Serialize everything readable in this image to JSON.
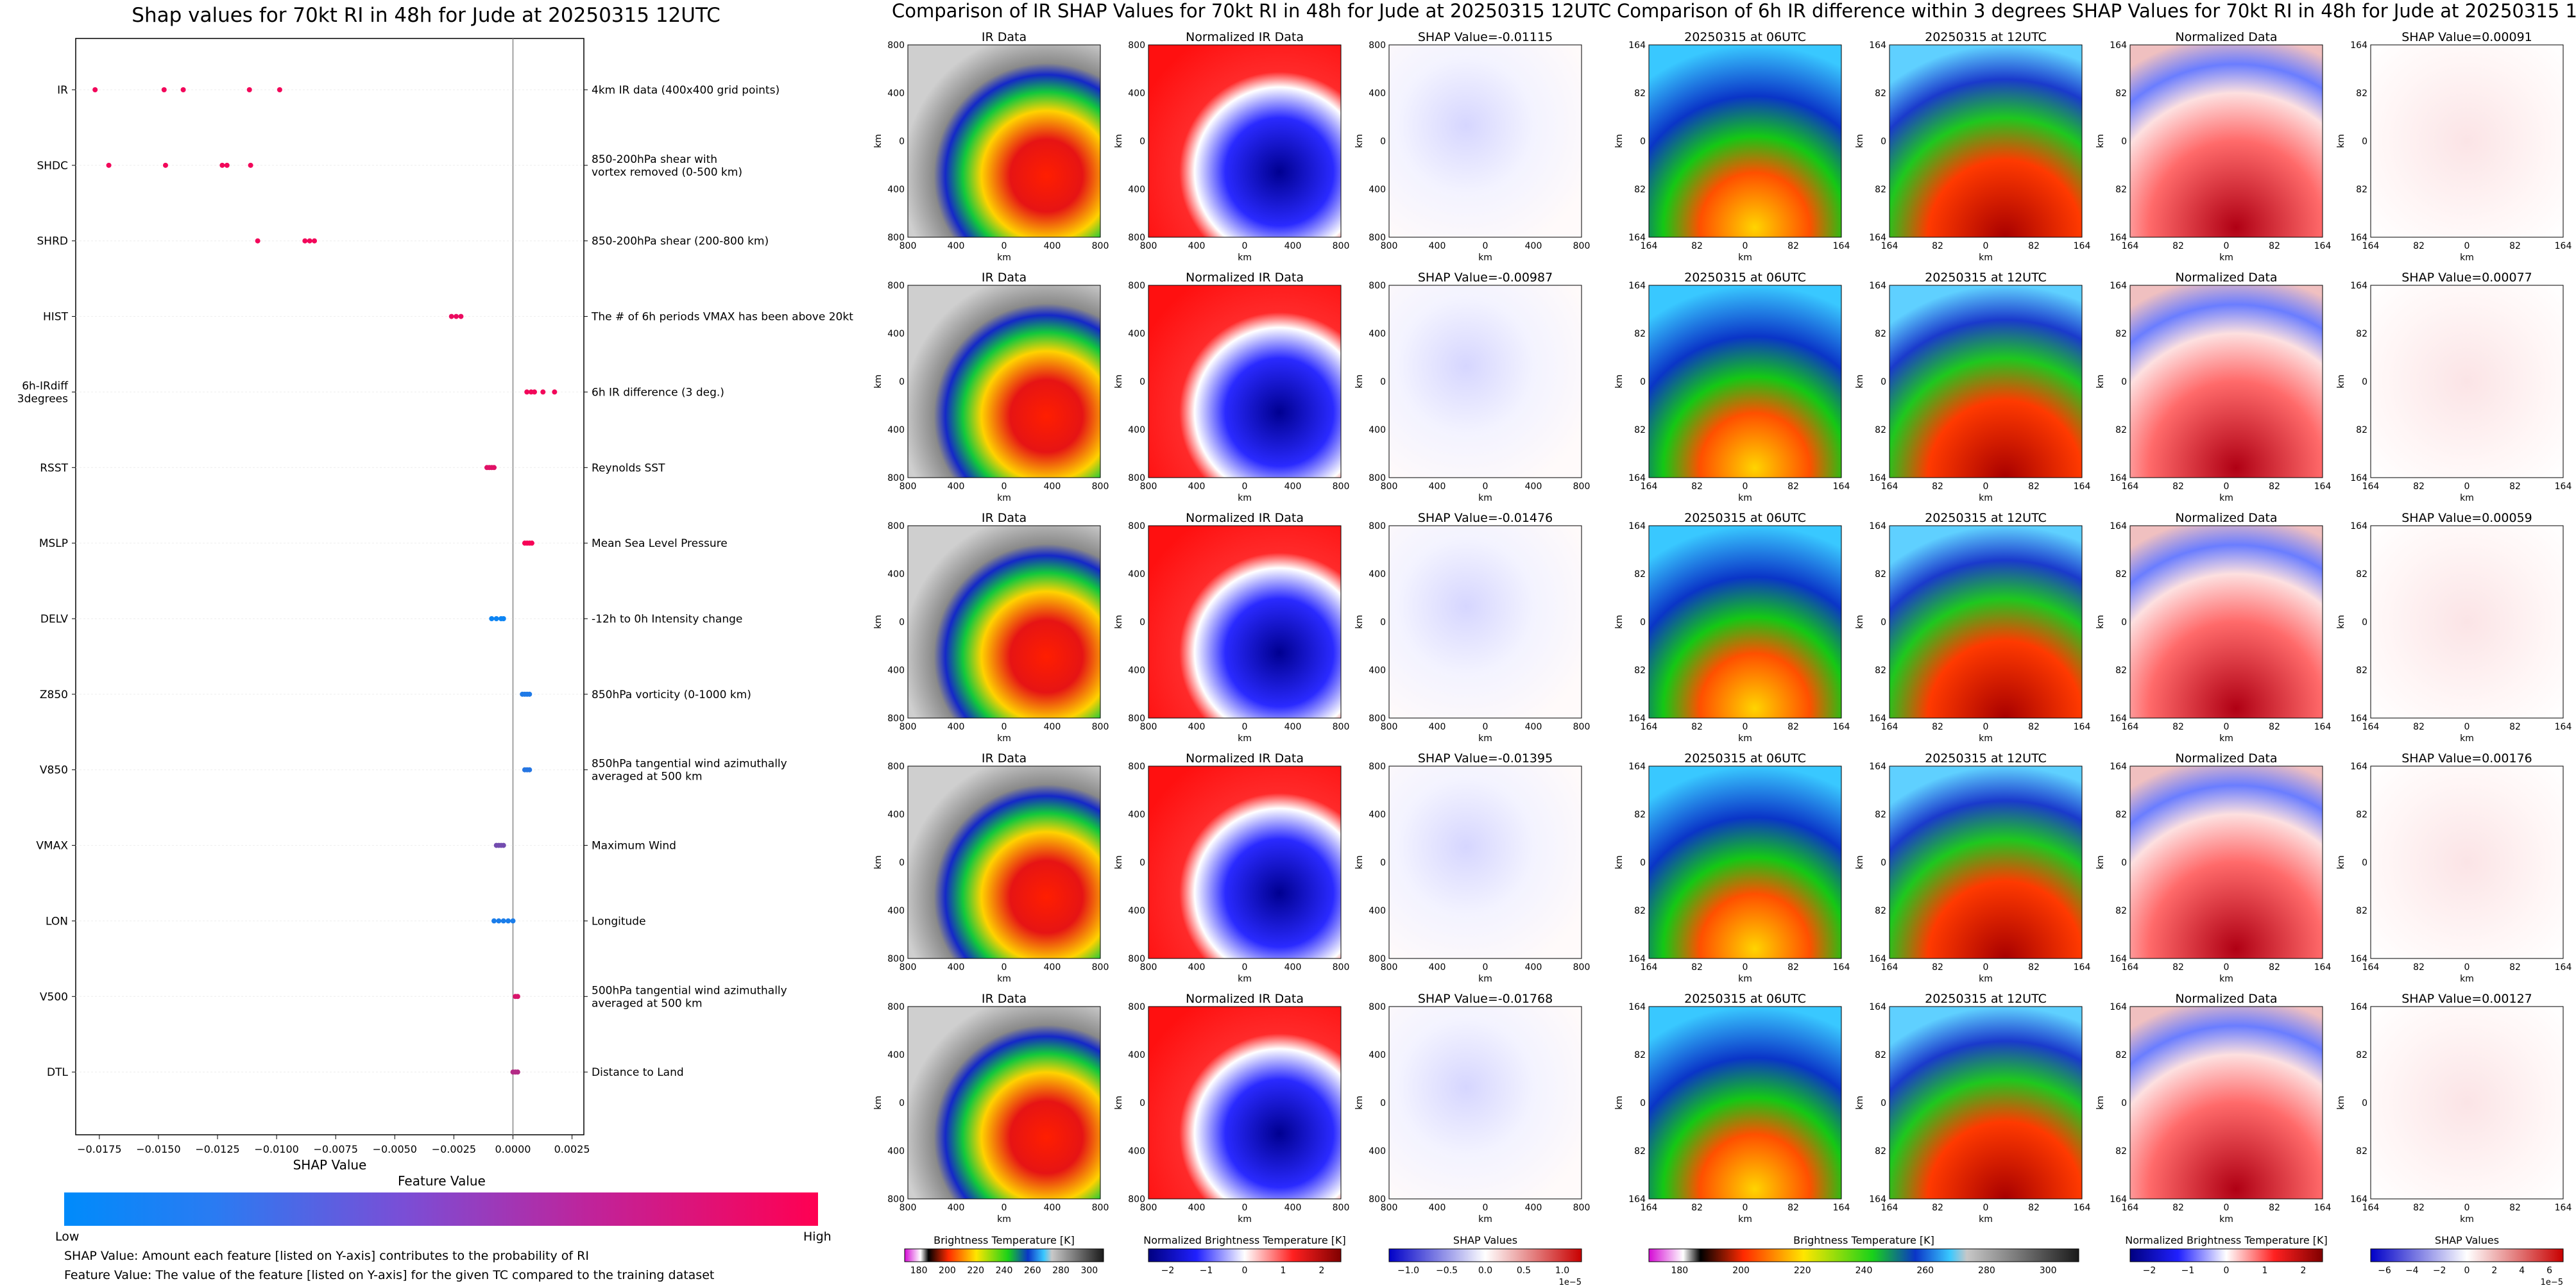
{
  "figure": {
    "left_title": "Shap values for 70kt RI in 48h for Jude at 20250315 12UTC",
    "mid_title": "Comparison of IR SHAP Values for 70kt RI in 48h for Jude at 20250315 12UTC",
    "right_title": "Comparison of 6h IR difference within 3 degrees SHAP Values for 70kt RI in 48h for Jude at 20250315 12UTC",
    "feature_value_label": "Feature Value",
    "low_label": "Low",
    "high_label": "High",
    "note1": "SHAP Value: Amount each feature [listed on Y-axis] contributes to the probability of RI",
    "note2": "Feature Value: The value of the feature [listed on Y-axis] for the given TC compared to the training dataset",
    "ir_col_titles": [
      "IR Data",
      "Normalized IR Data"
    ],
    "ir_shap_titles": [
      "SHAP Value=-0.01115",
      "SHAP Value=-0.00987",
      "SHAP Value=-0.01476",
      "SHAP Value=-0.01395",
      "SHAP Value=-0.01768"
    ],
    "diff_col_titles": [
      "20250315 at 06UTC",
      "20250315 at 12UTC",
      "Normalized Data"
    ],
    "diff_shap_titles": [
      "SHAP Value=0.00091",
      "SHAP Value=0.00077",
      "SHAP Value=0.00059",
      "SHAP Value=0.00176",
      "SHAP Value=0.00127"
    ],
    "ir_ticks": [
      "800",
      "400",
      "0",
      "400",
      "800"
    ],
    "diff_ticks": [
      "164",
      "82",
      "0",
      "82",
      "164"
    ],
    "km": "km",
    "colorbars": [
      {
        "label": "Brightness Temperature [K]",
        "ticks": [
          "180",
          "200",
          "220",
          "240",
          "260",
          "280",
          "300"
        ],
        "offset": ""
      },
      {
        "label": "Normalized Brightness Temperature [K]",
        "ticks": [
          "−2",
          "−1",
          "0",
          "1",
          "2"
        ],
        "offset": ""
      },
      {
        "label": "SHAP Values",
        "ticks": [
          "−1.0",
          "−0.5",
          "0.0",
          "0.5",
          "1.0"
        ],
        "offset": "1e−5"
      },
      {
        "label": "Brightness Temperature [K]",
        "ticks": [
          "180",
          "200",
          "220",
          "240",
          "260",
          "280",
          "300"
        ],
        "offset": ""
      },
      {
        "label": "Normalized Brightness Temperature [K]",
        "ticks": [
          "−2",
          "−1",
          "0",
          "1",
          "2"
        ],
        "offset": ""
      },
      {
        "label": "SHAP Values",
        "ticks": [
          "−6",
          "−4",
          "−2",
          "0",
          "2",
          "4",
          "6"
        ],
        "offset": "1e−5"
      }
    ]
  },
  "colors": {
    "low": "#008bfb",
    "high": "#ff0052",
    "pos": "#d7191c",
    "neg": "#2b3fd1"
  },
  "chart_data": {
    "type": "scatter",
    "title": "Shap values for 70kt RI in 48h for Jude at 20250315 12UTC",
    "xlabel": "SHAP Value",
    "xlim": [
      -0.0185,
      0.003
    ],
    "xticks": [
      -0.0175,
      -0.015,
      -0.0125,
      -0.01,
      -0.0075,
      -0.005,
      -0.0025,
      0.0,
      0.0025
    ],
    "xtick_labels": [
      "−0.0175",
      "−0.0150",
      "−0.0125",
      "−0.0100",
      "−0.0075",
      "−0.0050",
      "−0.0025",
      "0.0000",
      "0.0025"
    ],
    "features": [
      {
        "name": "IR",
        "desc": [
          "4km IR data (400x400 grid points)"
        ],
        "values": [
          -0.01768,
          -0.01476,
          -0.01395,
          -0.01115,
          -0.00987
        ],
        "feature_level": 0.95
      },
      {
        "name": "SHDC",
        "desc": [
          "850-200hPa shear with",
          "vortex removed (0-500 km)"
        ],
        "values": [
          -0.0171,
          -0.0147,
          -0.0123,
          -0.0121,
          -0.0111
        ],
        "feature_level": 0.95
      },
      {
        "name": "SHRD",
        "desc": [
          "850-200hPa shear (200-800 km)"
        ],
        "values": [
          -0.0108,
          -0.0088,
          -0.0086,
          -0.0084
        ],
        "feature_level": 0.95
      },
      {
        "name": "HIST",
        "desc": [
          "The # of 6h periods VMAX has been above 20kt"
        ],
        "values": [
          -0.0026,
          -0.0024,
          -0.0022
        ],
        "feature_level": 0.92
      },
      {
        "name": "6h-IRdiff\n3degrees",
        "desc": [
          "6h IR difference (3 deg.)"
        ],
        "values": [
          0.00059,
          0.00077,
          0.00091,
          0.00127,
          0.00176
        ],
        "feature_level": 0.95
      },
      {
        "name": "RSST",
        "desc": [
          "Reynolds SST"
        ],
        "values": [
          -0.0011,
          -0.001,
          -0.0009,
          -0.0008
        ],
        "feature_level": 0.88
      },
      {
        "name": "MSLP",
        "desc": [
          "Mean Sea Level Pressure"
        ],
        "values": [
          0.0005,
          0.0006,
          0.0007,
          0.0008
        ],
        "feature_level": 0.97
      },
      {
        "name": "DELV",
        "desc": [
          "-12h to 0h Intensity change"
        ],
        "values": [
          -0.0009,
          -0.0007,
          -0.0005,
          -0.0004
        ],
        "feature_level": 0.05
      },
      {
        "name": "Z850",
        "desc": [
          "850hPa vorticity (0-1000 km)"
        ],
        "values": [
          0.0004,
          0.0005,
          0.0006,
          0.0007
        ],
        "feature_level": 0.12
      },
      {
        "name": "V850",
        "desc": [
          "850hPa tangential wind azimuthally",
          "averaged at 500 km"
        ],
        "values": [
          0.0005,
          0.0006,
          0.0007
        ],
        "feature_level": 0.15
      },
      {
        "name": "VMAX",
        "desc": [
          "Maximum Wind"
        ],
        "values": [
          -0.0007,
          -0.0006,
          -0.0005,
          -0.0004
        ],
        "feature_level": 0.45
      },
      {
        "name": "LON",
        "desc": [
          "Longitude"
        ],
        "values": [
          -0.0008,
          -0.0006,
          -0.0004,
          -0.0002,
          0.0
        ],
        "feature_level": 0.1
      },
      {
        "name": "V500",
        "desc": [
          "500hPa tangential wind azimuthally",
          "averaged at 500 km"
        ],
        "values": [
          0.0001,
          0.0002
        ],
        "feature_level": 0.85
      },
      {
        "name": "DTL",
        "desc": [
          "Distance to Land"
        ],
        "values": [
          0.0,
          0.0001,
          0.0002
        ],
        "feature_level": 0.7
      }
    ]
  }
}
